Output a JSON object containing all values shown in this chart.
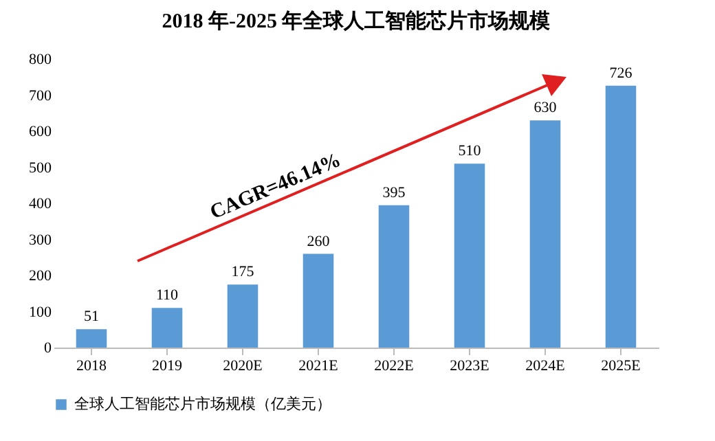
{
  "chart_data": {
    "type": "bar",
    "title": "2018 年-2025 年全球人工智能芯片市场规模",
    "categories": [
      "2018",
      "2019",
      "2020E",
      "2021E",
      "2022E",
      "2023E",
      "2024E",
      "2025E"
    ],
    "series": [
      {
        "name": "全球人工智能芯片市场规模（亿美元）",
        "color": "#5b9bd5",
        "values": [
          51,
          110,
          175,
          260,
          395,
          510,
          630,
          726
        ]
      }
    ],
    "ylim": [
      0,
      800
    ],
    "yticks": [
      0,
      100,
      200,
      300,
      400,
      500,
      600,
      700,
      800
    ],
    "grid": false,
    "legend": "bottom",
    "data_labels": true,
    "annotations": [
      "CAGR=46.14%"
    ]
  }
}
